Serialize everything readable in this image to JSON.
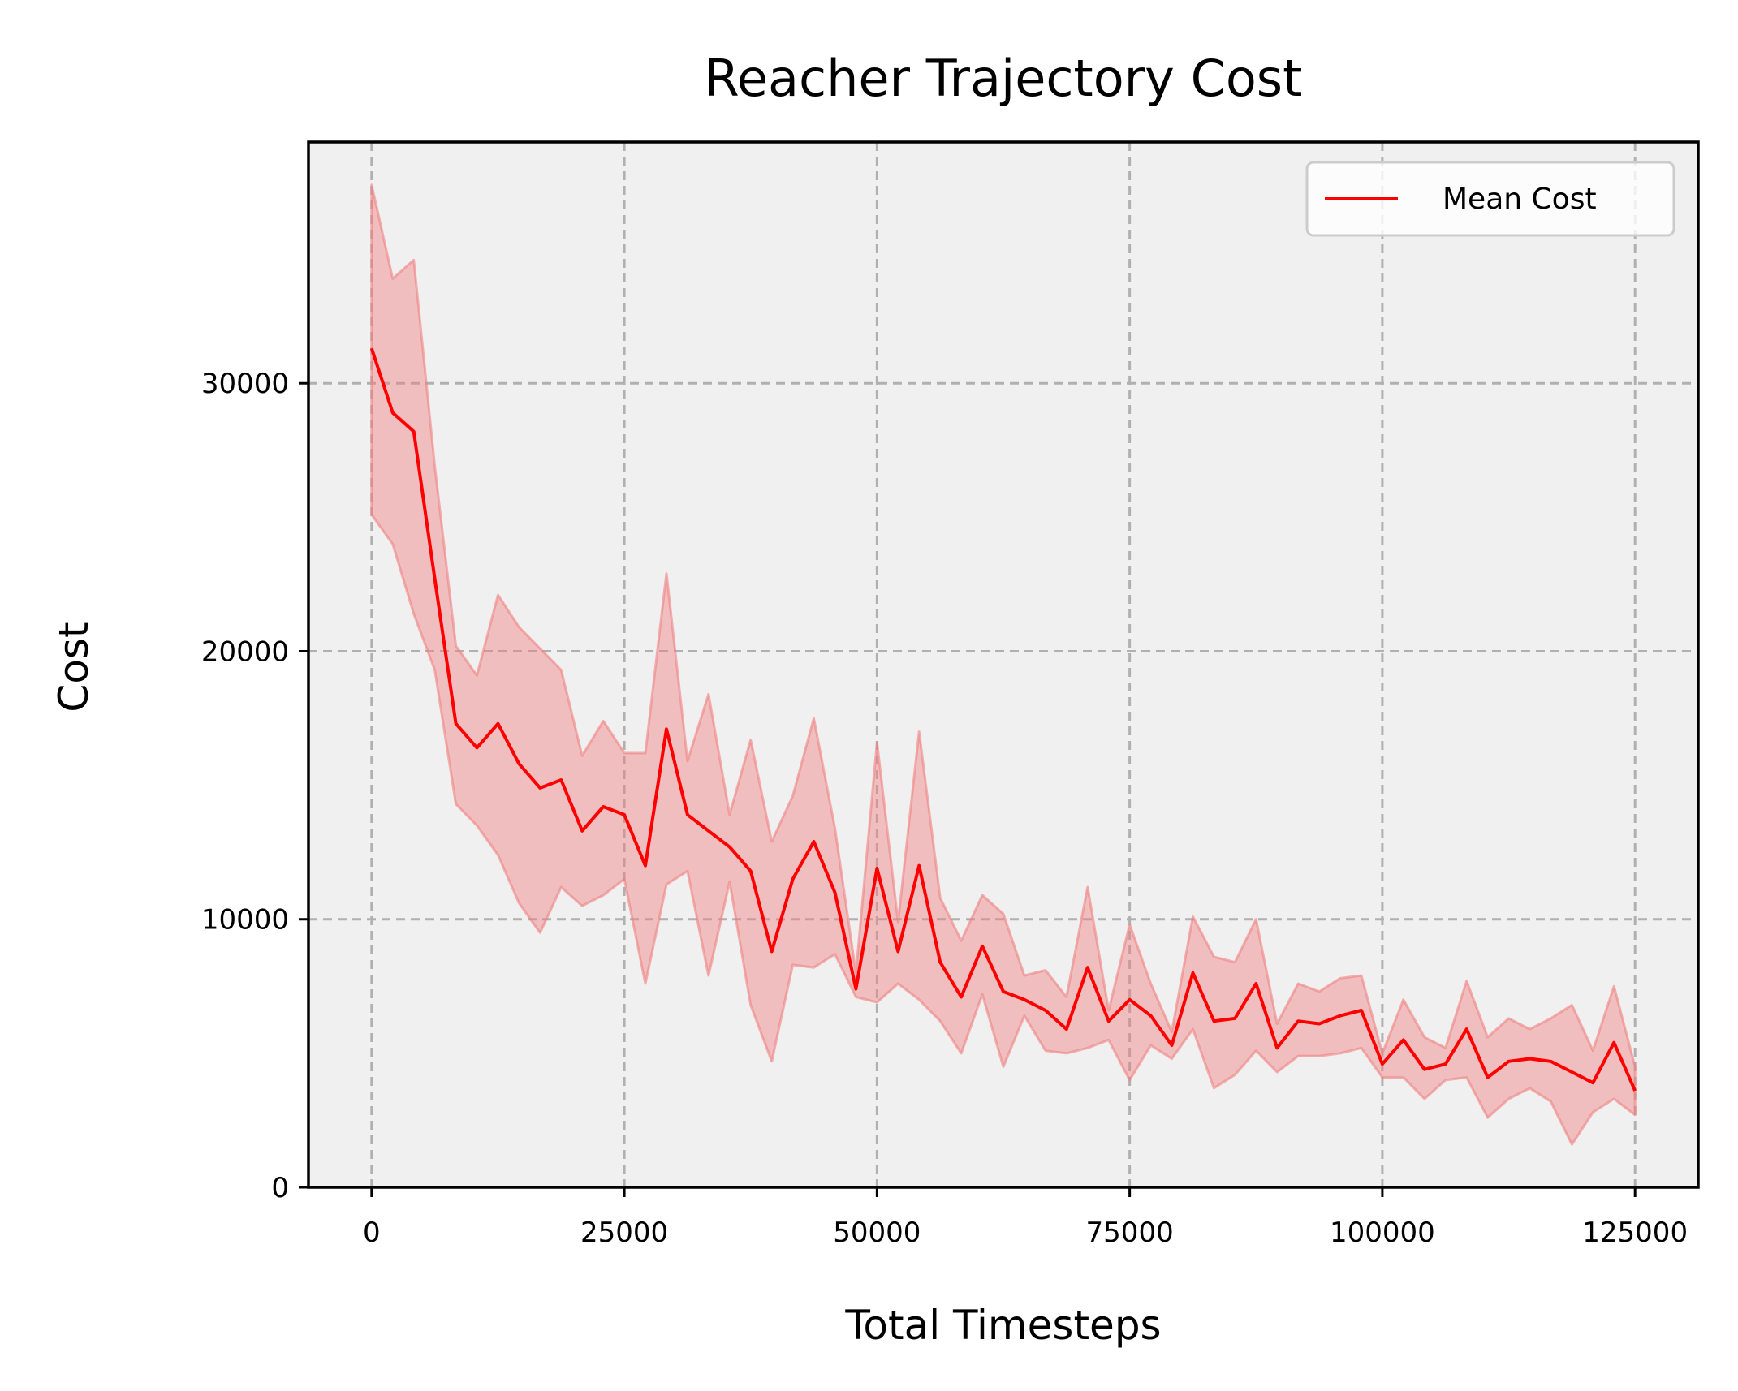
{
  "chart_data": {
    "type": "line",
    "title": "Reacher Trajectory Cost",
    "xlabel": "Total Timesteps",
    "ylabel": "Cost",
    "xlim": [
      -6250,
      131250
    ],
    "ylim": [
      0,
      39000
    ],
    "x_ticks": [
      0,
      25000,
      50000,
      75000,
      100000,
      125000
    ],
    "x_tick_labels": [
      "0",
      "25000",
      "50000",
      "75000",
      "100000",
      "125000"
    ],
    "y_ticks": [
      0,
      10000,
      20000,
      30000
    ],
    "y_tick_labels": [
      "0",
      "10000",
      "20000",
      "30000"
    ],
    "grid": true,
    "legend": {
      "position": "top-right",
      "entries": [
        "Mean Cost"
      ]
    },
    "colors": {
      "line": "#ff0000",
      "band_fill": "#f08080",
      "plot_background": "#f0f0f0",
      "grid": "#b0b0b0"
    },
    "series": [
      {
        "name": "Mean Cost",
        "x": [
          0,
          2083,
          4167,
          6250,
          8333,
          10417,
          12500,
          14583,
          16667,
          18750,
          20833,
          22917,
          25000,
          27083,
          29167,
          31250,
          33333,
          35417,
          37500,
          39583,
          41667,
          43750,
          45833,
          47917,
          50000,
          52083,
          54167,
          56250,
          58333,
          60417,
          62500,
          64583,
          66667,
          68750,
          70833,
          72917,
          75000,
          77083,
          79167,
          81250,
          83333,
          85417,
          87500,
          89583,
          91667,
          93750,
          95833,
          97917,
          100000,
          102083,
          104167,
          106250,
          108333,
          110417,
          112500,
          114583,
          116667,
          118750,
          120833,
          122917,
          125000
        ],
        "y": [
          31300,
          28900,
          28200,
          22700,
          17300,
          16400,
          17300,
          15800,
          14900,
          15200,
          13300,
          14200,
          13900,
          12000,
          17100,
          13900,
          13300,
          12700,
          11800,
          8800,
          11500,
          12900,
          11000,
          7400,
          11900,
          8800,
          12000,
          8400,
          7100,
          9000,
          7300,
          7000,
          6600,
          5900,
          8200,
          6200,
          7000,
          6400,
          5300,
          8000,
          6200,
          6300,
          7600,
          5200,
          6200,
          6100,
          6400,
          6600,
          4600,
          5500,
          4400,
          4600,
          5900,
          4100,
          4700,
          4800,
          4700,
          4300,
          3900,
          5400,
          3600
        ],
        "lower": [
          25100,
          24000,
          21400,
          19300,
          14300,
          13500,
          12400,
          10600,
          9500,
          11200,
          10500,
          10900,
          11500,
          7600,
          11300,
          11800,
          7900,
          11400,
          6800,
          4700,
          8300,
          8200,
          8700,
          7100,
          6900,
          7600,
          7000,
          6200,
          5000,
          7200,
          4500,
          6400,
          5100,
          5000,
          5200,
          5500,
          4000,
          5300,
          4800,
          5900,
          3700,
          4200,
          5100,
          4300,
          4900,
          4900,
          5000,
          5200,
          4100,
          4100,
          3300,
          4000,
          4100,
          2600,
          3300,
          3700,
          3200,
          1600,
          2800,
          3300,
          2700
        ],
        "upper": [
          37400,
          33900,
          34600,
          26900,
          20200,
          19100,
          22100,
          20900,
          20100,
          19300,
          16100,
          17400,
          16200,
          16200,
          22900,
          15900,
          18400,
          13900,
          16700,
          12900,
          14600,
          17500,
          13400,
          8000,
          16600,
          9900,
          17000,
          10800,
          9200,
          10900,
          10200,
          7900,
          8100,
          7100,
          11200,
          6600,
          9800,
          7600,
          5800,
          10100,
          8600,
          8400,
          10000,
          6100,
          7600,
          7300,
          7800,
          7900,
          5000,
          7000,
          5600,
          5200,
          7700,
          5600,
          6300,
          5900,
          6300,
          6800,
          5100,
          7500,
          4500
        ]
      }
    ]
  }
}
